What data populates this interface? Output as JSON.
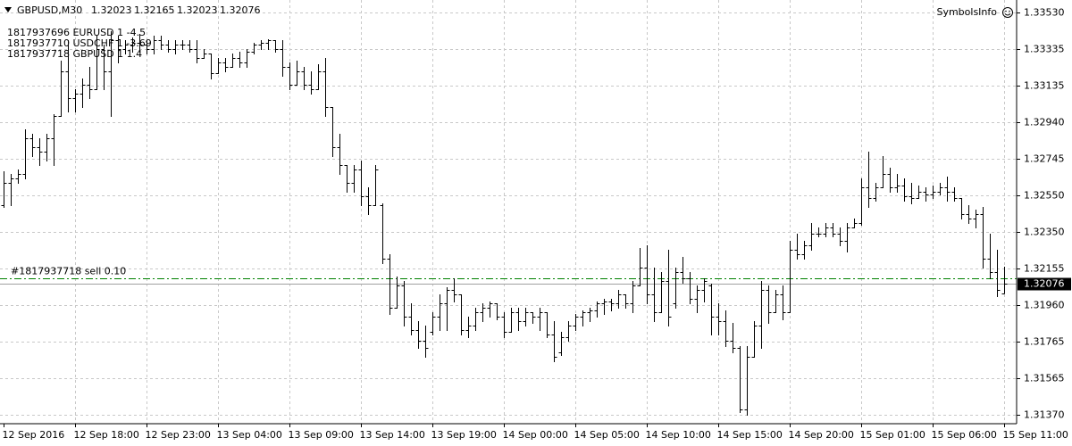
{
  "chart_data": {
    "type": "ohlc",
    "symbol": "GBPUSD,M30",
    "indicator": "SymbolsInfo",
    "comments": [
      "1817937696 EURUSD 1 -4.5",
      "1817937710 USDCHF 1 -3.69",
      "1817937718 GBPUSD 1 1.4"
    ],
    "order_line": {
      "label": "#1817937718 sell 0.10",
      "price": 1.32103,
      "color": "#008000"
    },
    "color": "#000000",
    "grid": true,
    "ylim": [
      1.31322,
      1.33597
    ],
    "yticks": [
      {
        "value": 1.3353,
        "label": "1.33530"
      },
      {
        "value": 1.33335,
        "label": "1.33335"
      },
      {
        "value": 1.33135,
        "label": "1.33135"
      },
      {
        "value": 1.3294,
        "label": "1.32940"
      },
      {
        "value": 1.32745,
        "label": "1.32745"
      },
      {
        "value": 1.3255,
        "label": "1.32550"
      },
      {
        "value": 1.3235,
        "label": "1.32350"
      },
      {
        "value": 1.32155,
        "label": "1.32155"
      },
      {
        "value": 1.3196,
        "label": "1.31960"
      },
      {
        "value": 1.31765,
        "label": "1.31765"
      },
      {
        "value": 1.31565,
        "label": "1.31565"
      },
      {
        "value": 1.3137,
        "label": "1.31370"
      }
    ],
    "categories": [
      "12 Sep 2016",
      null,
      null,
      null,
      null,
      null,
      null,
      null,
      null,
      null,
      "12 Sep 18:00",
      null,
      null,
      null,
      null,
      null,
      null,
      null,
      null,
      null,
      "12 Sep 23:00",
      null,
      null,
      null,
      null,
      null,
      null,
      null,
      null,
      null,
      "13 Sep 04:00",
      null,
      null,
      null,
      null,
      null,
      null,
      null,
      null,
      null,
      "13 Sep 09:00",
      null,
      null,
      null,
      null,
      null,
      null,
      null,
      null,
      null,
      "13 Sep 14:00",
      null,
      null,
      null,
      null,
      null,
      null,
      null,
      null,
      null,
      "13 Sep 19:00",
      null,
      null,
      null,
      null,
      null,
      null,
      null,
      null,
      null,
      "14 Sep 00:00",
      null,
      null,
      null,
      null,
      null,
      null,
      null,
      null,
      null,
      "14 Sep 05:00",
      null,
      null,
      null,
      null,
      null,
      null,
      null,
      null,
      null,
      "14 Sep 10:00",
      null,
      null,
      null,
      null,
      null,
      null,
      null,
      null,
      null,
      "14 Sep 15:00",
      null,
      null,
      null,
      null,
      null,
      null,
      null,
      null,
      null,
      "14 Sep 20:00",
      null,
      null,
      null,
      null,
      null,
      null,
      null,
      null,
      null,
      "15 Sep 01:00",
      null,
      null,
      null,
      null,
      null,
      null,
      null,
      null,
      null,
      "15 Sep 06:00",
      null,
      null,
      null,
      null,
      null,
      null,
      null,
      null,
      null,
      "15 Sep 11:00"
    ],
    "open": [
      1.32495,
      1.32615,
      1.32639,
      1.32663,
      1.32855,
      1.32807,
      1.32783,
      1.32855,
      1.32974,
      1.33214,
      1.3307,
      1.33094,
      1.33142,
      1.33118,
      1.33334,
      1.33214,
      1.33381,
      1.33334,
      1.33358,
      1.33367,
      1.33358,
      1.33334,
      1.33381,
      1.33358,
      1.33334,
      1.33358,
      1.33358,
      1.33334,
      1.33286,
      1.3331,
      1.33204,
      1.33262,
      1.33238,
      1.33286,
      1.33262,
      1.33319,
      1.33358,
      1.33367,
      1.33381,
      1.33334,
      1.33238,
      1.33142,
      1.33214,
      1.33142,
      1.33118,
      1.33214,
      1.33022,
      1.32807,
      1.32711,
      1.32615,
      1.32687,
      1.32543,
      1.32495,
      1.32495,
      1.32208,
      1.31944,
      1.32064,
      1.31896,
      1.31825,
      1.31767,
      1.31815,
      1.31896,
      1.31968,
      1.3204,
      1.32016,
      1.31825,
      1.31849,
      1.31921,
      1.31944,
      1.31968,
      1.31896,
      1.31815,
      1.31921,
      1.31873,
      1.31921,
      1.31896,
      1.31921,
      1.31801,
      1.31705,
      1.31786,
      1.31849,
      1.31896,
      1.31921,
      1.3193,
      1.31968,
      1.31978,
      1.31968,
      1.32016,
      1.31968,
      1.32064,
      1.3216,
      1.32016,
      1.31921,
      1.32088,
      1.31968,
      1.32136,
      1.32103,
      1.31992,
      1.3204,
      1.32064,
      1.31896,
      1.31873,
      1.31767,
      1.31729,
      1.314,
      1.31681,
      1.31849,
      1.3204,
      1.31921,
      1.32016,
      1.31921,
      1.32256,
      1.32232,
      1.3228,
      1.32342,
      1.32342,
      1.32376,
      1.32342,
      1.32304,
      1.32376,
      1.324,
      1.32591,
      1.32534,
      1.32591,
      1.32663,
      1.32591,
      1.32601,
      1.32543,
      1.32534,
      1.32567,
      1.32553,
      1.32567,
      1.32591,
      1.32567,
      1.32534,
      1.32447,
      1.32423,
      1.32447,
      1.32208,
      1.32136,
      1.32023
    ],
    "high": [
      1.32677,
      1.32663,
      1.32687,
      1.32903,
      1.32879,
      1.32855,
      1.32879,
      1.32984,
      1.33271,
      1.33381,
      1.33118,
      1.33176,
      1.33238,
      1.33405,
      1.33358,
      1.33429,
      1.33405,
      1.33381,
      1.33396,
      1.33415,
      1.33381,
      1.33405,
      1.33405,
      1.33381,
      1.33381,
      1.33381,
      1.33381,
      1.33381,
      1.33334,
      1.3331,
      1.33286,
      1.33286,
      1.3331,
      1.33319,
      1.33334,
      1.33367,
      1.33381,
      1.33386,
      1.33381,
      1.33381,
      1.33262,
      1.33271,
      1.33238,
      1.33214,
      1.33252,
      1.33286,
      1.33022,
      1.32879,
      1.32711,
      1.32711,
      1.32735,
      1.32591,
      1.32711,
      1.32505,
      1.32232,
      1.32112,
      1.32088,
      1.31968,
      1.31873,
      1.31849,
      1.31921,
      1.32016,
      1.32055,
      1.32103,
      1.32016,
      1.31896,
      1.31944,
      1.31968,
      1.31978,
      1.31968,
      1.31921,
      1.31944,
      1.31944,
      1.31944,
      1.31921,
      1.31944,
      1.31921,
      1.31873,
      1.31815,
      1.31873,
      1.31911,
      1.3193,
      1.31944,
      1.31978,
      1.31992,
      1.31992,
      1.3204,
      1.32016,
      1.32088,
      1.32266,
      1.3228,
      1.3216,
      1.32136,
      1.32256,
      1.3216,
      1.32218,
      1.32136,
      1.32064,
      1.32103,
      1.32074,
      1.31968,
      1.3193,
      1.31863,
      1.31739,
      1.31739,
      1.31873,
      1.32088,
      1.32064,
      1.3204,
      1.32064,
      1.32304,
      1.32342,
      1.32304,
      1.324,
      1.32376,
      1.324,
      1.324,
      1.32376,
      1.324,
      1.32423,
      1.32639,
      1.32783,
      1.32615,
      1.32759,
      1.32697,
      1.32663,
      1.32639,
      1.32615,
      1.32601,
      1.32591,
      1.32601,
      1.32615,
      1.32649,
      1.32591,
      1.32534,
      1.32495,
      1.32471,
      1.32486,
      1.32342,
      1.32256,
      1.32165
    ],
    "low": [
      1.32486,
      1.32495,
      1.32615,
      1.32639,
      1.32759,
      1.32711,
      1.32735,
      1.32711,
      1.32974,
      1.32998,
      1.32998,
      1.33022,
      1.3307,
      1.33118,
      1.33118,
      1.32974,
      1.33262,
      1.3331,
      1.33319,
      1.33319,
      1.3331,
      1.3331,
      1.33334,
      1.33319,
      1.3331,
      1.33334,
      1.33319,
      1.33262,
      1.33286,
      1.33176,
      1.33204,
      1.33214,
      1.33238,
      1.33238,
      1.33238,
      1.3331,
      1.33334,
      1.33334,
      1.33319,
      1.3319,
      1.33118,
      1.33142,
      1.33118,
      1.33094,
      1.33118,
      1.32974,
      1.32759,
      1.32663,
      1.32567,
      1.32567,
      1.32495,
      1.32447,
      1.32495,
      1.32184,
      1.31911,
      1.31944,
      1.31849,
      1.31801,
      1.31729,
      1.31681,
      1.31801,
      1.31825,
      1.31825,
      1.31978,
      1.31801,
      1.31786,
      1.31825,
      1.31873,
      1.31896,
      1.31882,
      1.31786,
      1.31815,
      1.31825,
      1.31849,
      1.31863,
      1.31825,
      1.31786,
      1.31657,
      1.31691,
      1.31767,
      1.31825,
      1.31849,
      1.31873,
      1.31896,
      1.31911,
      1.3193,
      1.31944,
      1.31944,
      1.31921,
      1.32064,
      1.31968,
      1.31873,
      1.31921,
      1.31849,
      1.31944,
      1.32079,
      1.31968,
      1.31921,
      1.31978,
      1.31801,
      1.31801,
      1.31739,
      1.31705,
      1.31384,
      1.3137,
      1.31681,
      1.31729,
      1.31863,
      1.31921,
      1.31882,
      1.31921,
      1.32208,
      1.32208,
      1.32256,
      1.32328,
      1.32328,
      1.32328,
      1.3228,
      1.32246,
      1.32376,
      1.3239,
      1.32486,
      1.32519,
      1.32591,
      1.32567,
      1.32567,
      1.32519,
      1.32505,
      1.32534,
      1.32519,
      1.32534,
      1.32553,
      1.32519,
      1.32519,
      1.32423,
      1.324,
      1.32376,
      1.3216,
      1.32103,
      1.32007,
      1.32023
    ],
    "close": [
      1.32615,
      1.32639,
      1.32663,
      1.32855,
      1.32807,
      1.32783,
      1.32855,
      1.32974,
      1.33214,
      1.3307,
      1.33094,
      1.33142,
      1.33118,
      1.33334,
      1.33214,
      1.33381,
      1.33334,
      1.33358,
      1.33367,
      1.33358,
      1.33334,
      1.33381,
      1.33358,
      1.33334,
      1.33358,
      1.33358,
      1.33334,
      1.33286,
      1.3331,
      1.33204,
      1.33262,
      1.33238,
      1.33286,
      1.33262,
      1.33319,
      1.33358,
      1.33367,
      1.33381,
      1.33334,
      1.33238,
      1.33142,
      1.33214,
      1.33142,
      1.33118,
      1.33214,
      1.33022,
      1.32807,
      1.32711,
      1.32615,
      1.32687,
      1.32543,
      1.32495,
      1.32687,
      1.32208,
      1.31944,
      1.32064,
      1.31896,
      1.31825,
      1.31767,
      1.31729,
      1.31896,
      1.31968,
      1.3204,
      1.32016,
      1.31825,
      1.31849,
      1.31921,
      1.31944,
      1.31968,
      1.31896,
      1.31815,
      1.31921,
      1.31873,
      1.31921,
      1.31896,
      1.31921,
      1.31801,
      1.31681,
      1.31786,
      1.31849,
      1.31896,
      1.31921,
      1.3193,
      1.31968,
      1.31978,
      1.31968,
      1.32016,
      1.31968,
      1.32064,
      1.3216,
      1.32016,
      1.31921,
      1.32088,
      1.31896,
      1.32136,
      1.32103,
      1.31992,
      1.3204,
      1.32088,
      1.31896,
      1.31873,
      1.31767,
      1.31729,
      1.314,
      1.31681,
      1.31849,
      1.3204,
      1.31921,
      1.32016,
      1.31921,
      1.32256,
      1.32232,
      1.3228,
      1.32342,
      1.32342,
      1.32376,
      1.32342,
      1.32304,
      1.32376,
      1.324,
      1.32591,
      1.32534,
      1.32591,
      1.32663,
      1.32591,
      1.32601,
      1.32543,
      1.32534,
      1.32567,
      1.32553,
      1.32567,
      1.32591,
      1.32567,
      1.32534,
      1.32447,
      1.32423,
      1.32447,
      1.32208,
      1.32136,
      1.3204,
      1.32076
    ]
  }
}
